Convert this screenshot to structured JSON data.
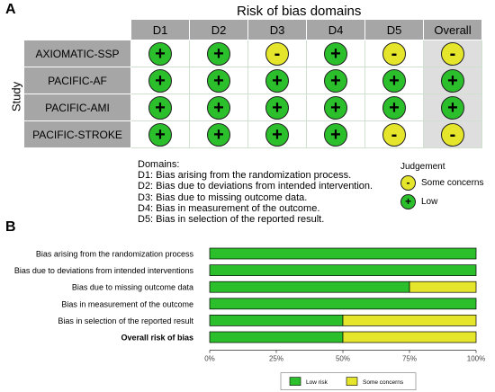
{
  "panel_a": {
    "label": "A",
    "header": "Risk of bias domains",
    "axis_label": "Study",
    "columns": [
      "D1",
      "D2",
      "D3",
      "D4",
      "D5",
      "Overall"
    ],
    "rows": [
      {
        "study": "AXIOMATIC-SSP",
        "judgements": [
          "low",
          "low",
          "some",
          "low",
          "some",
          "some"
        ]
      },
      {
        "study": "PACIFIC-AF",
        "judgements": [
          "low",
          "low",
          "low",
          "low",
          "low",
          "low"
        ]
      },
      {
        "study": "PACIFIC-AMI",
        "judgements": [
          "low",
          "low",
          "low",
          "low",
          "low",
          "low"
        ]
      },
      {
        "study": "PACIFIC-STROKE",
        "judgements": [
          "low",
          "low",
          "low",
          "low",
          "some",
          "some"
        ]
      }
    ],
    "symbols": {
      "low": "+",
      "some": "-"
    },
    "colors": {
      "low": "#2bbf2b",
      "some": "#e5e52b",
      "header_bg": "#a6a6a6",
      "overall_bg": "#dedede"
    },
    "domains_legend": {
      "title": "Domains:",
      "items": [
        "D1: Bias arising from the randomization process.",
        "D2: Bias due to deviations from intended intervention.",
        "D3: Bias due to missing outcome data.",
        "D4: Bias in measurement of the outcome.",
        "D5: Bias in selection of the reported result."
      ]
    },
    "judgement_legend": {
      "title": "Judgement",
      "items": [
        {
          "key": "some",
          "label": "Some concerns"
        },
        {
          "key": "low",
          "label": "Low"
        }
      ]
    }
  },
  "panel_b": {
    "label": "B"
  },
  "chart_data": {
    "type": "bar",
    "orientation": "horizontal",
    "stacked": true,
    "categories": [
      "Bias arising from the randomization process",
      "Bias due to deviations from intended interventions",
      "Bias due to missing outcome data",
      "Bias in measurement of the outcome",
      "Bias in selection of the reported result",
      "Overall risk of bias"
    ],
    "bold_categories": [
      "Overall risk of bias"
    ],
    "series": [
      {
        "name": "Low risk",
        "color": "#2bbf2b",
        "values": [
          100,
          100,
          75,
          100,
          50,
          50
        ]
      },
      {
        "name": "Some concerns",
        "color": "#e5e52b",
        "values": [
          0,
          0,
          25,
          0,
          50,
          50
        ]
      }
    ],
    "x_ticks": [
      "0%",
      "25%",
      "50%",
      "75%",
      "100%"
    ],
    "xlim": [
      0,
      100
    ],
    "grid": false,
    "legend_position": "bottom"
  }
}
